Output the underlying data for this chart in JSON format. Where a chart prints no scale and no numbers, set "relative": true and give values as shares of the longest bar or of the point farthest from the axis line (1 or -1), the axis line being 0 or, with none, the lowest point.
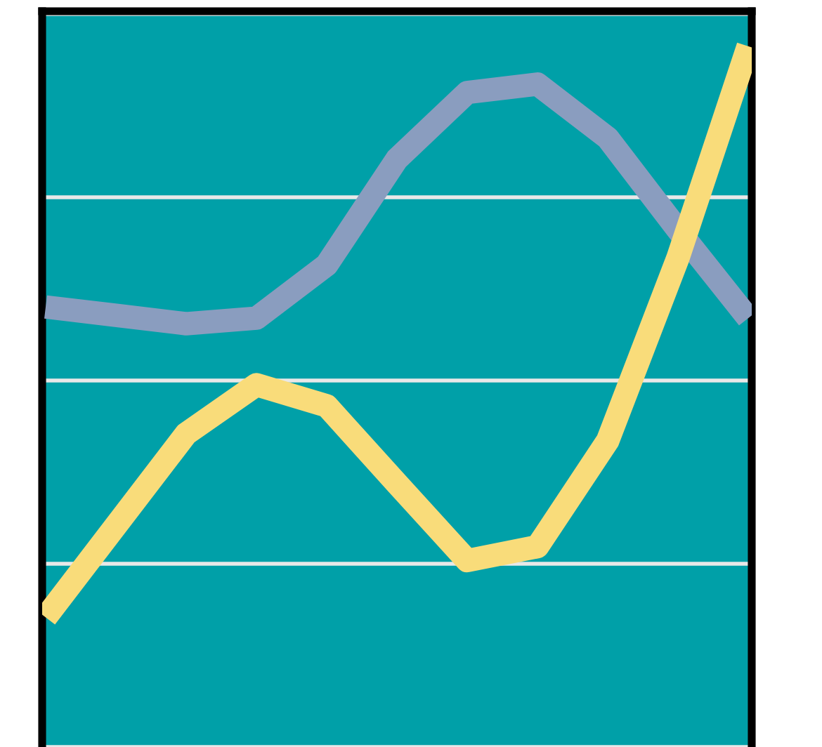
{
  "chart_data": {
    "type": "line",
    "relative": true,
    "grid": "y",
    "marker": "none",
    "line_style": "solid",
    "tick_labels": false,
    "categories": [
      null,
      null,
      null,
      null,
      null,
      null,
      null,
      null,
      null,
      null,
      null
    ],
    "series": [
      {
        "color": "#8a9dbf",
        "values": [
          0.628,
          0.616,
          0.604,
          0.612,
          0.688,
          0.839,
          0.934,
          0.946,
          0.869,
          0.738,
          0.612
        ]
      },
      {
        "color": "#f9dc7a",
        "values": [
          0.185,
          0.316,
          0.447,
          0.517,
          0.487,
          0.376,
          0.266,
          0.286,
          0.437,
          0.698,
          1
        ]
      }
    ]
  }
}
